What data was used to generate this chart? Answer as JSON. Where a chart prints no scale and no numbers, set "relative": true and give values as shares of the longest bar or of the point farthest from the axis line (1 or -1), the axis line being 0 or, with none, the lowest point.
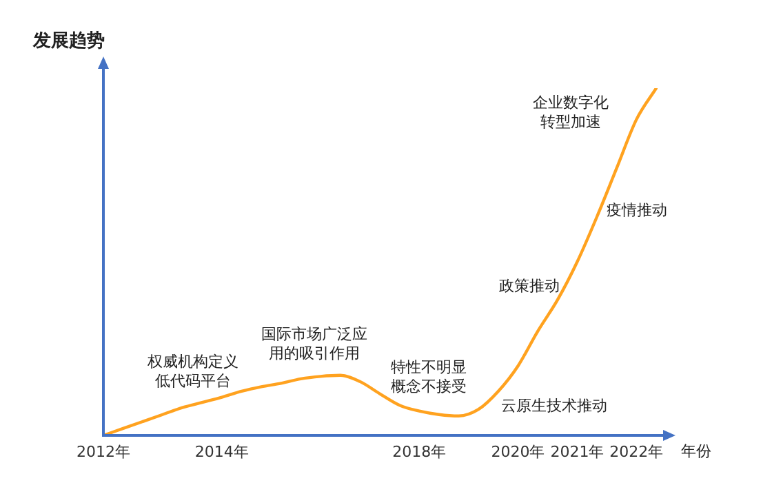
{
  "chart_data": {
    "type": "line",
    "relative": true,
    "ylabel": "发展趋势",
    "xlabel": "年份",
    "categories": [
      "2012年",
      null,
      null,
      null,
      null,
      null,
      "2014年",
      null,
      null,
      null,
      null,
      null,
      null,
      null,
      null,
      null,
      "2018年",
      null,
      null,
      null,
      null,
      "2020年",
      null,
      null,
      "2021年",
      null,
      null,
      "2022年",
      null
    ],
    "series": [
      {
        "color": "#ffa21f",
        "values": [
          0,
          0.02,
          0.04,
          0.06,
          0.08,
          0.095,
          0.11,
          0.127,
          0.14,
          0.15,
          0.163,
          0.17,
          0.173,
          0.155,
          0.12,
          0.087,
          0.07,
          0.06,
          0.056,
          0.075,
          0.127,
          0.2,
          0.3,
          0.39,
          0.5,
          0.63,
          0.77,
          0.91,
          1
        ]
      }
    ],
    "annotations": [
      "权威机构定义低代码平台",
      "国际市场广泛应用的吸引作用",
      "特性不明显概念不接受",
      "云原生技术推动",
      "政策推动",
      "疫情推动",
      "企业数字化转型加速"
    ],
    "marker": "none",
    "line_style": "solid",
    "grid": false,
    "legend": false
  }
}
